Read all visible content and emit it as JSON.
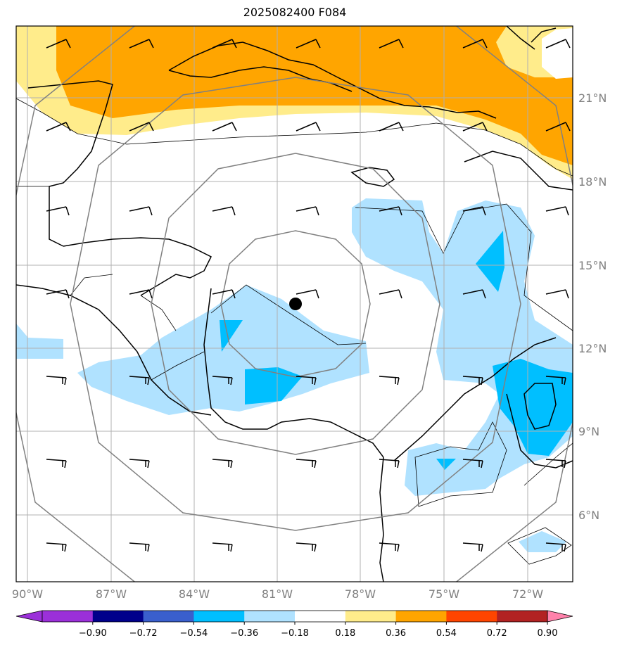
{
  "title": "2025082400 F084",
  "lon_labels": [
    "90°W",
    "87°W",
    "84°W",
    "81°W",
    "78°W",
    "75°W",
    "72°W"
  ],
  "lat_labels": [
    "21°N",
    "18°N",
    "15°N",
    "12°N",
    "9°N",
    "6°N"
  ],
  "colorbar": {
    "ticks": [
      "−0.90",
      "−0.72",
      "−0.54",
      "−0.36",
      "−0.18",
      "0.18",
      "0.36",
      "0.54",
      "0.72",
      "0.90"
    ],
    "colors": [
      "#9b30d9",
      "#00008b",
      "#3a5fcd",
      "#00bfff",
      "#b0e2ff",
      "#ffffff",
      "#ffec8b",
      "#ffa500",
      "#ff4500",
      "#b22222",
      "#ff82ab"
    ]
  },
  "center_marker": {
    "lon": -80.7,
    "lat": 13.6
  },
  "colors": {
    "light_blue": "#b0e2ff",
    "blue": "#00bfff",
    "light_yellow": "#ffec8b",
    "orange": "#ffa500",
    "range_rings": "#808080",
    "gridlines": "#b0b0b0"
  }
}
